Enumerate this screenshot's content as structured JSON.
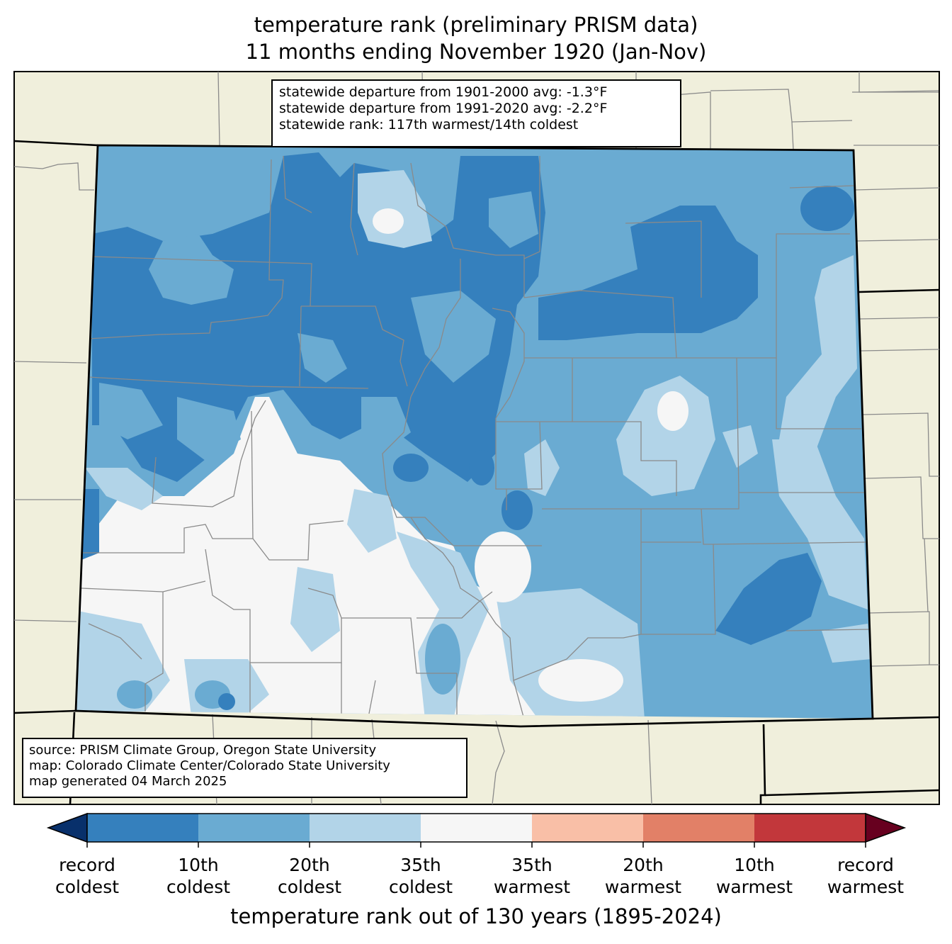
{
  "title": {
    "line1": "temperature rank (preliminary PRISM data)",
    "line2": "11 months ending November 1920 (Jan-Nov)"
  },
  "stats": {
    "line1": "statewide departure from 1901-2000 avg: -1.3°F",
    "line2": "statewide departure from 1991-2020 avg: -2.2°F",
    "line3": "statewide rank: 117th warmest/14th coldest"
  },
  "source": {
    "line1": "source: PRISM Climate Group, Oregon State University",
    "line2": "map: Colorado Climate Center/Colorado State University",
    "line3": "map generated 04 March 2025"
  },
  "colorbar": {
    "title": "temperature rank out of 130 years (1895-2024)",
    "under_color": "#08306b",
    "over_color": "#67001f",
    "bins": [
      "#3580bd",
      "#6aabd2",
      "#b2d4e8",
      "#f6f6f6",
      "#f9bfa7",
      "#e28067",
      "#c2373b"
    ],
    "ticks": [
      {
        "l1": "record",
        "l2": "coldest"
      },
      {
        "l1": "10th",
        "l2": "coldest"
      },
      {
        "l1": "20th",
        "l2": "coldest"
      },
      {
        "l1": "35th",
        "l2": "coldest"
      },
      {
        "l1": "35th",
        "l2": "warmest"
      },
      {
        "l1": "20th",
        "l2": "warmest"
      },
      {
        "l1": "10th",
        "l2": "warmest"
      },
      {
        "l1": "record",
        "l2": "warmest"
      }
    ]
  },
  "map_colors": {
    "land": "#f0efdc",
    "border": "#000000",
    "county": "#8a8a8a",
    "record_coldest_to_10th": "#3580bd",
    "tenth_to_20th_coldest": "#6aabd2",
    "twentieth_to_35th_coldest": "#b2d4e8",
    "near_normal": "#f6f6f6"
  }
}
